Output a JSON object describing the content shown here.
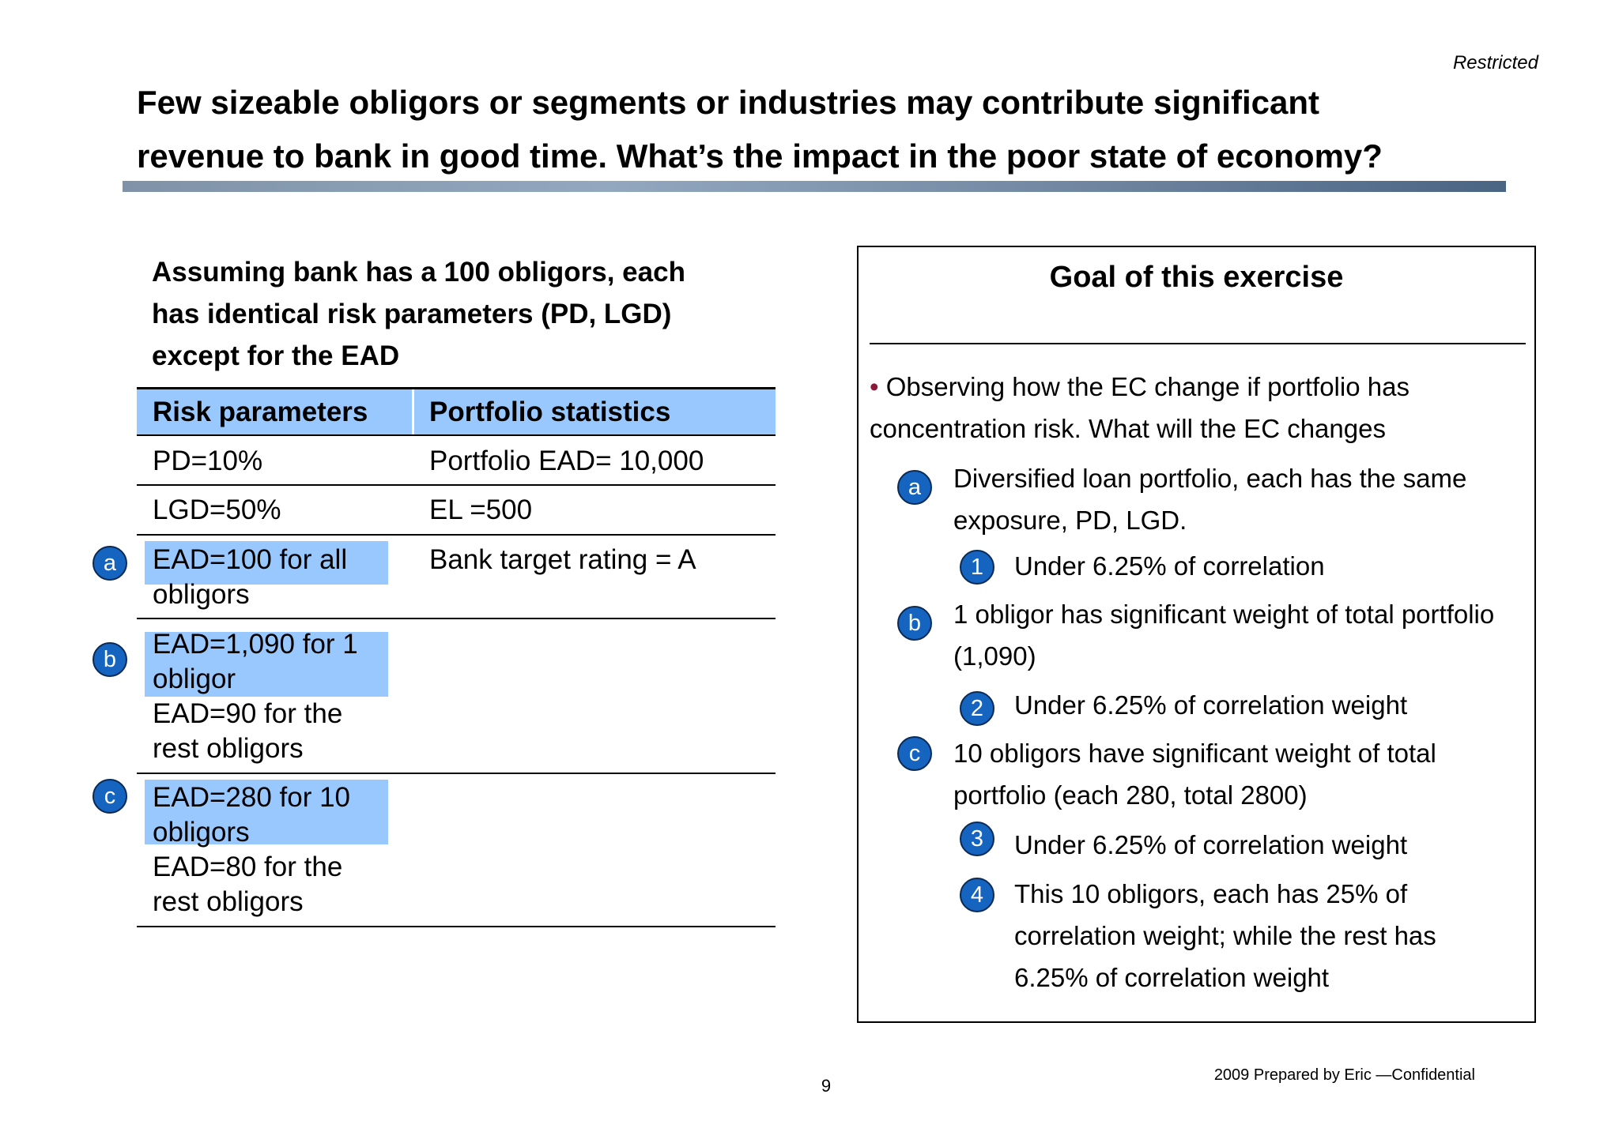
{
  "header": {
    "restricted": "Restricted",
    "title_line1": "Few sizeable obligors or segments or industries may contribute significant",
    "title_line2": "revenue to bank in good time. What’s the impact in the poor state of economy?"
  },
  "assumption": {
    "line1": "Assuming bank has a 100 obligors, each",
    "line2": "has identical risk parameters (PD, LGD)",
    "line3": "except for the EAD"
  },
  "table": {
    "headers": [
      "Risk parameters",
      "Portfolio statistics"
    ],
    "pd": "PD=10%",
    "lgd": "LGD=50%",
    "ead_a_line1": "EAD=100 for all",
    "ead_a_line2": "obligors",
    "ead_b_line1": "EAD=1,090 for 1",
    "ead_b_line2": "obligor",
    "ead_b_rest_line1": "EAD=90 for the",
    "ead_b_rest_line2": "rest obligors",
    "ead_c_line1": "EAD=280 for 10",
    "ead_c_line2": "obligors",
    "ead_c_rest_line1": "EAD=80 for the",
    "ead_c_rest_line2": "rest obligors",
    "portfolio_ead": "Portfolio EAD= 10,000",
    "el": "EL =500",
    "target_rating": "Bank target rating = A"
  },
  "markers": {
    "a": "a",
    "b": "b",
    "c": "c",
    "n1": "1",
    "n2": "2",
    "n3": "3",
    "n4": "4"
  },
  "goal": {
    "title": "Goal of this exercise",
    "bullet": "•",
    "intro_line1": "Observing how the EC change if portfolio has",
    "intro_line2": "concentration risk. What will the EC changes",
    "a_line1": "Diversified loan portfolio, each has the same",
    "a_line2": "exposure, PD, LGD.",
    "n1": "Under 6.25% of correlation",
    "b_line1": "1 obligor has significant weight of total portfolio",
    "b_line2": "(1,090)",
    "n2": "Under 6.25% of correlation weight",
    "c_line1": "10 obligors have significant weight of total",
    "c_line2": "portfolio (each 280, total 2800)",
    "n3": "Under 6.25% of correlation weight",
    "n4_line1": "This 10 obligors, each has 25% of",
    "n4_line2": "correlation weight; while the rest has",
    "n4_line3": "6.25% of correlation weight"
  },
  "footer": {
    "page_number": "9",
    "confidential": "2009 Prepared by Eric —Confidential"
  }
}
